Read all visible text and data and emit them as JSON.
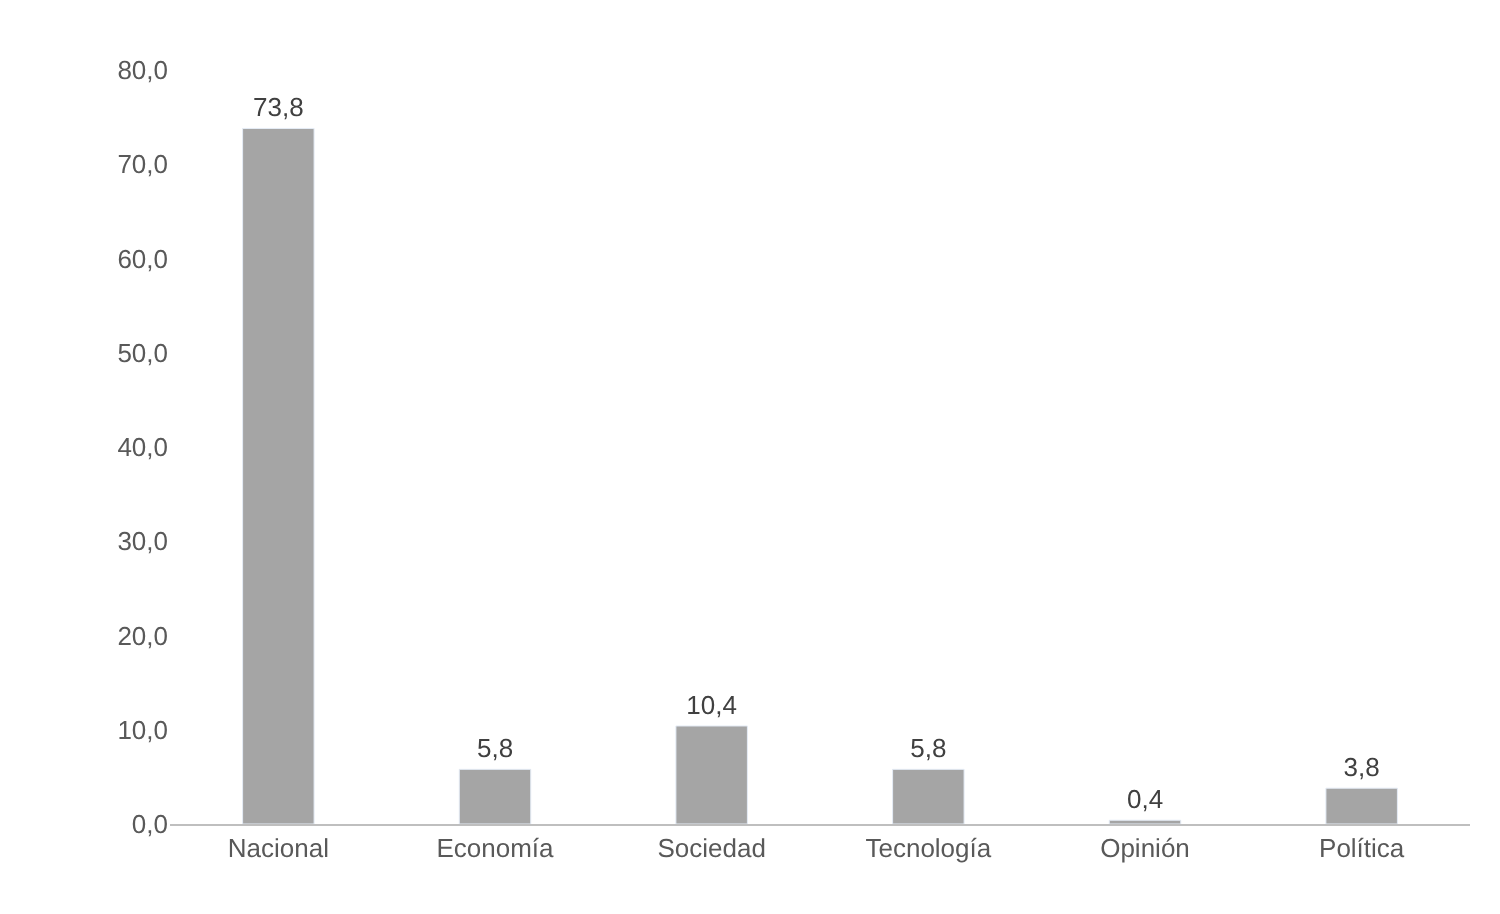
{
  "chart_data": {
    "type": "bar",
    "categories": [
      "Nacional",
      "Economía",
      "Sociedad",
      "Tecnología",
      "Opinión",
      "Política"
    ],
    "values": [
      73.8,
      5.8,
      10.4,
      5.8,
      0.4,
      3.8
    ],
    "value_labels": [
      "73,8",
      "5,8",
      "10,4",
      "5,8",
      "0,4",
      "3,8"
    ],
    "color": "#a5a5a5",
    "ylim": [
      0,
      80
    ],
    "yticks": [
      {
        "value": 0,
        "label": "0,0"
      },
      {
        "value": 10,
        "label": "10,0"
      },
      {
        "value": 20,
        "label": "20,0"
      },
      {
        "value": 30,
        "label": "30,0"
      },
      {
        "value": 40,
        "label": "40,0"
      },
      {
        "value": 50,
        "label": "50,0"
      },
      {
        "value": 60,
        "label": "60,0"
      },
      {
        "value": 70,
        "label": "70,0"
      },
      {
        "value": 80,
        "label": "80,0"
      }
    ],
    "legend": false
  }
}
